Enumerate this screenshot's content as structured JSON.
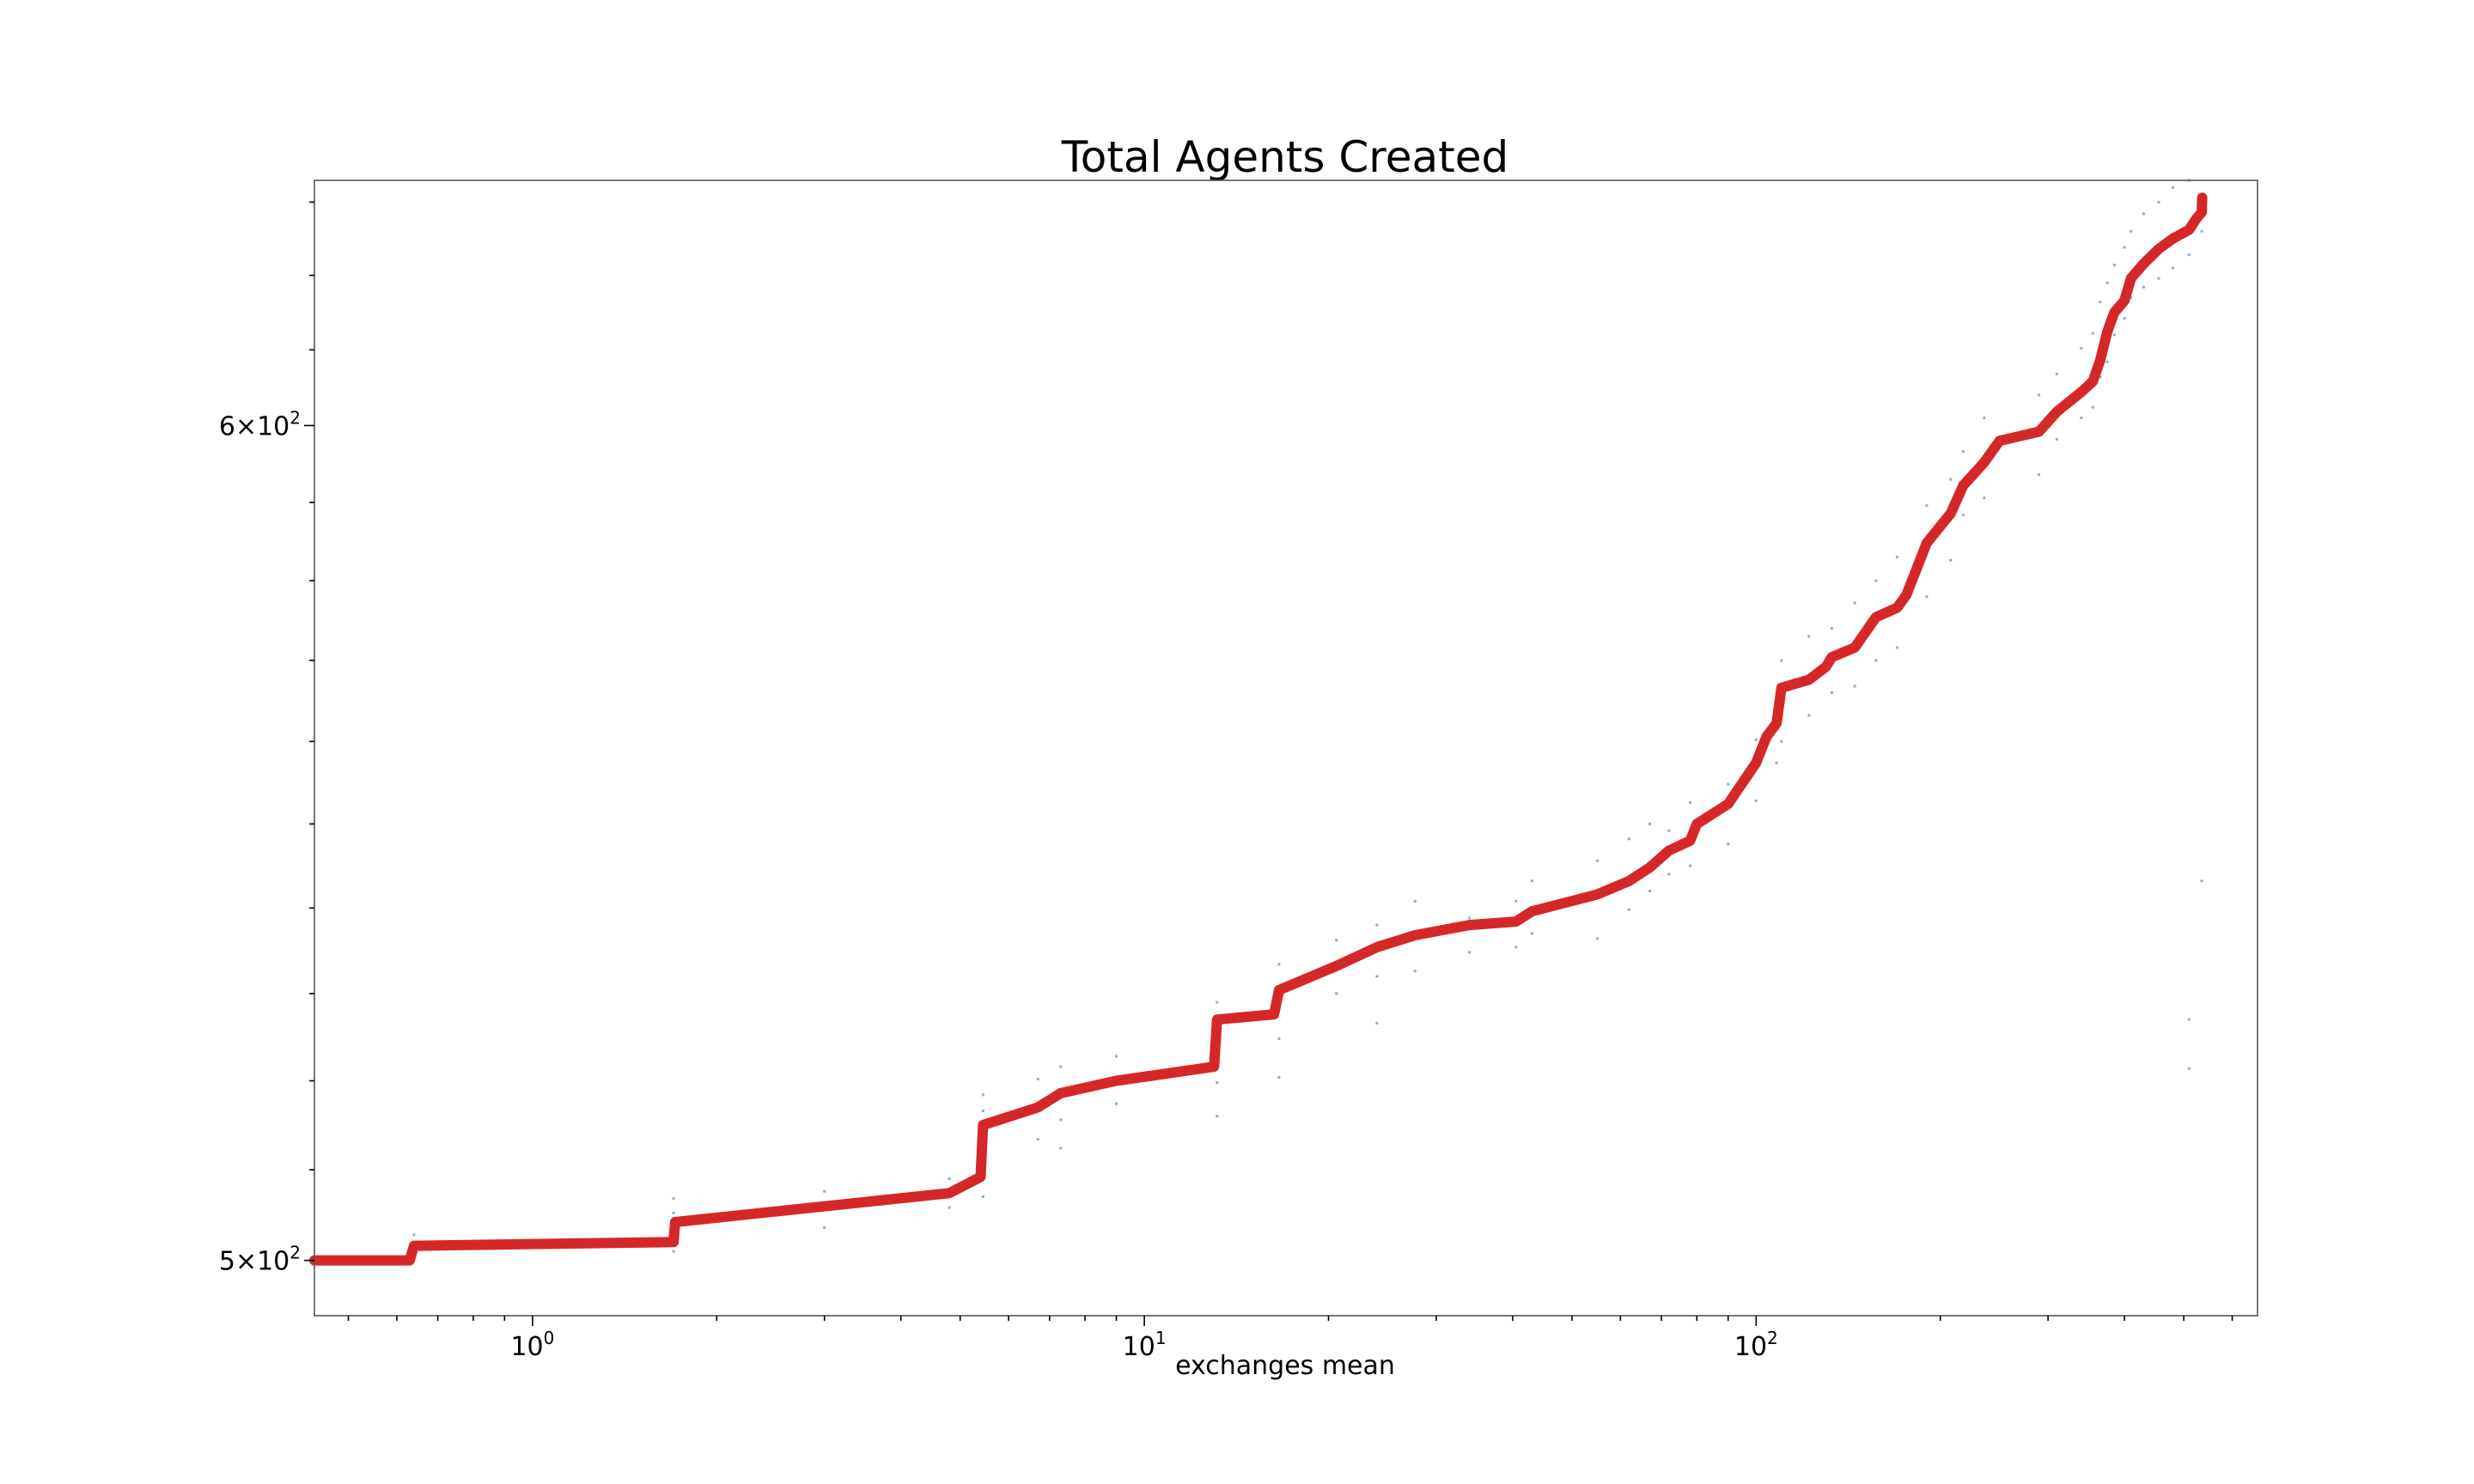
{
  "chart_data": {
    "type": "line",
    "title": "Total Agents Created",
    "xlabel": "exchanges mean",
    "ylabel": "",
    "x_scale": "log",
    "y_scale": "log",
    "xlim": [
      0.44,
      660
    ],
    "ylim": [
      494,
      633
    ],
    "x_ticks": [
      {
        "value": 1,
        "base": "10",
        "exp": "0"
      },
      {
        "value": 10,
        "base": "10",
        "exp": "1"
      },
      {
        "value": 100,
        "base": "10",
        "exp": "2"
      }
    ],
    "y_ticks": [
      {
        "value": 500,
        "base": "5×10",
        "exp": "2"
      },
      {
        "value": 600,
        "base": "6×10",
        "exp": "2"
      }
    ],
    "grid": false,
    "legend": null,
    "colors": {
      "line": "#d62728",
      "scatter": "#7fb2de"
    },
    "series": [
      {
        "style": "line",
        "points": [
          [
            0.44,
            500
          ],
          [
            0.63,
            500
          ],
          [
            0.64,
            501.6
          ],
          [
            1.7,
            502
          ],
          [
            1.71,
            504.2
          ],
          [
            4.8,
            507.4
          ],
          [
            5.4,
            509.2
          ],
          [
            5.45,
            515
          ],
          [
            6.7,
            517
          ],
          [
            7.3,
            518.6
          ],
          [
            9.0,
            520
          ],
          [
            13.0,
            521.6
          ],
          [
            13.15,
            527
          ],
          [
            16.3,
            527.6
          ],
          [
            16.6,
            530.4
          ],
          [
            20.6,
            533.2
          ],
          [
            24,
            535.4
          ],
          [
            27.7,
            536.8
          ],
          [
            34,
            538
          ],
          [
            40.5,
            538.4
          ],
          [
            43,
            539.6
          ],
          [
            55,
            541.6
          ],
          [
            62,
            543.2
          ],
          [
            67,
            544.8
          ],
          [
            72,
            546.8
          ],
          [
            78,
            548.0
          ],
          [
            80,
            550.0
          ],
          [
            90,
            552.4
          ],
          [
            100,
            557.4
          ],
          [
            104,
            560.6
          ],
          [
            108,
            562.2
          ],
          [
            110,
            566.6
          ],
          [
            122,
            567.6
          ],
          [
            130,
            569.2
          ],
          [
            133,
            570.4
          ],
          [
            145,
            571.6
          ],
          [
            157,
            575.4
          ],
          [
            170,
            576.6
          ],
          [
            176,
            578.2
          ],
          [
            190,
            584.8
          ],
          [
            208,
            588.6
          ],
          [
            218,
            592.2
          ],
          [
            236,
            595.2
          ],
          [
            250,
            598
          ],
          [
            290,
            599.2
          ],
          [
            310,
            601.8
          ],
          [
            340,
            604.4
          ],
          [
            355,
            605.8
          ],
          [
            365,
            608.6
          ],
          [
            375,
            612.4
          ],
          [
            385,
            615
          ],
          [
            400,
            616.6
          ],
          [
            410,
            619.6
          ],
          [
            430,
            621.6
          ],
          [
            455,
            623.6
          ],
          [
            480,
            625
          ],
          [
            510,
            626.2
          ],
          [
            525,
            627.8
          ],
          [
            535,
            628.6
          ],
          [
            536,
            630.6
          ]
        ]
      }
    ],
    "scatter_series": [
      {
        "style": "scatter",
        "points": [
          [
            0.64,
            500.4
          ],
          [
            0.64,
            502.0
          ],
          [
            0.64,
            502.8
          ],
          [
            1.7,
            501.0
          ],
          [
            1.7,
            503.0
          ],
          [
            1.7,
            505.2
          ],
          [
            1.7,
            506.8
          ],
          [
            3.0,
            503.6
          ],
          [
            3.0,
            505.6
          ],
          [
            3.0,
            507.6
          ],
          [
            4.8,
            505.8
          ],
          [
            4.8,
            507.8
          ],
          [
            4.8,
            509.0
          ],
          [
            5.45,
            507.0
          ],
          [
            5.45,
            511.6
          ],
          [
            5.45,
            513.4
          ],
          [
            5.45,
            516.6
          ],
          [
            5.45,
            518.4
          ],
          [
            6.7,
            513.4
          ],
          [
            6.7,
            520.2
          ],
          [
            7.3,
            512.4
          ],
          [
            7.3,
            515.6
          ],
          [
            7.3,
            521.6
          ],
          [
            9.0,
            517.4
          ],
          [
            9.0,
            522.8
          ],
          [
            13.15,
            516.0
          ],
          [
            13.15,
            519.8
          ],
          [
            13.15,
            524.2
          ],
          [
            13.15,
            529.0
          ],
          [
            16.6,
            520.4
          ],
          [
            16.6,
            524.8
          ],
          [
            16.6,
            530.8
          ],
          [
            16.6,
            533.4
          ],
          [
            20.6,
            530.0
          ],
          [
            20.6,
            536.2
          ],
          [
            24,
            526.6
          ],
          [
            24,
            532.0
          ],
          [
            24,
            538.0
          ],
          [
            27.7,
            532.6
          ],
          [
            27.7,
            540.8
          ],
          [
            34,
            534.8
          ],
          [
            34,
            538.8
          ],
          [
            40.5,
            535.4
          ],
          [
            40.5,
            540.8
          ],
          [
            43,
            537.0
          ],
          [
            43,
            543.2
          ],
          [
            55,
            536.4
          ],
          [
            55,
            545.6
          ],
          [
            62,
            539.8
          ],
          [
            62,
            548.2
          ],
          [
            67,
            542.0
          ],
          [
            67,
            550.0
          ],
          [
            72,
            544.0
          ],
          [
            72,
            549.2
          ],
          [
            78,
            545.0
          ],
          [
            78,
            552.6
          ],
          [
            90,
            547.6
          ],
          [
            90,
            554.8
          ],
          [
            100,
            552.8
          ],
          [
            100,
            560.2
          ],
          [
            108,
            557.4
          ],
          [
            108,
            565.2
          ],
          [
            110,
            560.0
          ],
          [
            110,
            570.0
          ],
          [
            122,
            563.2
          ],
          [
            122,
            573.0
          ],
          [
            133,
            566.0
          ],
          [
            133,
            574.0
          ],
          [
            145,
            566.8
          ],
          [
            145,
            577.2
          ],
          [
            157,
            570.0
          ],
          [
            157,
            580.0
          ],
          [
            170,
            571.6
          ],
          [
            170,
            583.0
          ],
          [
            190,
            578.0
          ],
          [
            190,
            589.6
          ],
          [
            208,
            582.6
          ],
          [
            208,
            593.0
          ],
          [
            218,
            588.4
          ],
          [
            218,
            596.6
          ],
          [
            236,
            590.6
          ],
          [
            236,
            601.0
          ],
          [
            290,
            593.6
          ],
          [
            290,
            604.0
          ],
          [
            310,
            598.2
          ],
          [
            310,
            606.8
          ],
          [
            340,
            601.0
          ],
          [
            340,
            610.2
          ],
          [
            355,
            602.4
          ],
          [
            355,
            612.2
          ],
          [
            365,
            606.4
          ],
          [
            365,
            616.4
          ],
          [
            375,
            608.4
          ],
          [
            375,
            619.0
          ],
          [
            385,
            612.0
          ],
          [
            385,
            621.4
          ],
          [
            400,
            614.2
          ],
          [
            400,
            623.8
          ],
          [
            410,
            617.0
          ],
          [
            410,
            626.0
          ],
          [
            430,
            618.4
          ],
          [
            430,
            628.4
          ],
          [
            455,
            619.6
          ],
          [
            455,
            630.0
          ],
          [
            480,
            621.0
          ],
          [
            480,
            632.0
          ],
          [
            510,
            622.8
          ],
          [
            510,
            633.0
          ],
          [
            535,
            543.2
          ],
          [
            535,
            626.0
          ],
          [
            535,
            631.0
          ],
          [
            510,
            527.0
          ],
          [
            510,
            521.4
          ]
        ]
      }
    ]
  }
}
